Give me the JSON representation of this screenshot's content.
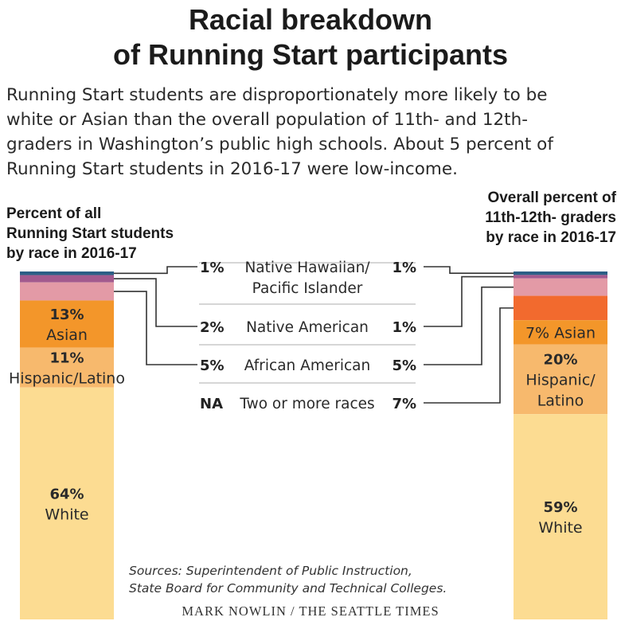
{
  "title_line1": "Racial breakdown",
  "title_line2": "of Running Start participants",
  "subtitle_lines": [
    "Running Start students are disproportionately more likely to be",
    "white or Asian than the overall population of 11th- and 12th-",
    "graders in Washington’s public high schools. About 5 percent of",
    "Running Start students in 2016-17 were low-income."
  ],
  "left_heading": [
    "Percent of all",
    "Running Start students",
    "by race in 2016-17"
  ],
  "right_heading": [
    "Overall percent of",
    "11th-12th- graders",
    "by race in 2016-17"
  ],
  "source_lines": [
    "Sources: Superintendent of Public Instruction,",
    "State Board for Community and Technical Colleges."
  ],
  "credit": "MARK NOWLIN / THE SEATTLE TIMES",
  "chart_data": {
    "type": "bar",
    "stacked": true,
    "categories": [
      "Native Hawaiian/ Pacific Islander",
      "Native American",
      "African American",
      "Two or more races",
      "Asian",
      "Hispanic/Latino",
      "White"
    ],
    "series": [
      {
        "name": "Percent of all Running Start students by race in 2016-17",
        "values": [
          1,
          2,
          5,
          null,
          13,
          11,
          64
        ],
        "labels": [
          "1%",
          "2%",
          "5%",
          "NA",
          "13%",
          "11%",
          "64%"
        ]
      },
      {
        "name": "Overall percent of 11th-12th- graders by race in 2016-17",
        "values": [
          1,
          1,
          5,
          7,
          7,
          20,
          59
        ],
        "labels": [
          "1%",
          "1%",
          "5%",
          "7%",
          "7%",
          "20%",
          "59%"
        ]
      }
    ],
    "segment_text": {
      "left": {
        "Asian": [
          "13%",
          "Asian"
        ],
        "Hispanic/Latino": [
          "11%",
          "Hispanic/Latino"
        ],
        "White": [
          "64%",
          "White"
        ]
      },
      "right": {
        "Asian": [
          "7% Asian"
        ],
        "Hispanic/Latino": [
          "20%",
          "Hispanic/",
          "Latino"
        ],
        "White": [
          "59%",
          "White"
        ]
      }
    },
    "legend_rows": [
      {
        "left": "1%",
        "label": [
          "Native Hawaiian/",
          "Pacific Islander"
        ],
        "right": "1%"
      },
      {
        "left": "2%",
        "label": [
          "Native American"
        ],
        "right": "1%"
      },
      {
        "left": "5%",
        "label": [
          "African American"
        ],
        "right": "5%"
      },
      {
        "left": "NA",
        "label": [
          "Two or more races"
        ],
        "right": "7%"
      }
    ],
    "colors": {
      "Native Hawaiian/ Pacific Islander": "#2c5f86",
      "Native American": "#a35a8e",
      "African American": "#e39aa6",
      "Two or more races": "#f26a2e",
      "Asian": "#f3962a",
      "Hispanic/Latino": "#f7b96d",
      "White": "#fcdc92"
    }
  }
}
